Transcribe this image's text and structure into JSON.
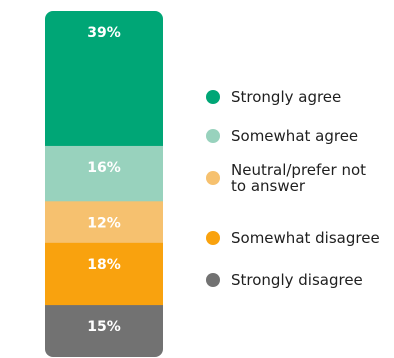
{
  "chart_data": {
    "type": "bar",
    "stacked": true,
    "orientation": "vertical",
    "categories": [
      ""
    ],
    "series": [
      {
        "name": "Strongly agree",
        "values": [
          39
        ],
        "label": "39%",
        "color": "#00A676"
      },
      {
        "name": "Somewhat agree",
        "values": [
          16
        ],
        "label": "16%",
        "color": "#98D2BD"
      },
      {
        "name": "Neutral/prefer not to answer",
        "values": [
          12
        ],
        "label": "12%",
        "color": "#F6C16F"
      },
      {
        "name": "Somewhat disagree",
        "values": [
          18
        ],
        "label": "18%",
        "color": "#F9A20E"
      },
      {
        "name": "Strongly disagree",
        "values": [
          15
        ],
        "label": "15%",
        "color": "#727272"
      }
    ],
    "title": "",
    "xlabel": "",
    "ylabel": "",
    "ylim": [
      0,
      100
    ],
    "grid": false,
    "legend": "right"
  },
  "legend_lines": [
    [
      "Strongly agree"
    ],
    [
      "Somewhat agree"
    ],
    [
      "Neutral/prefer not",
      "to answer"
    ],
    [
      "Somewhat disagree"
    ],
    [
      "Strongly disagree"
    ]
  ]
}
